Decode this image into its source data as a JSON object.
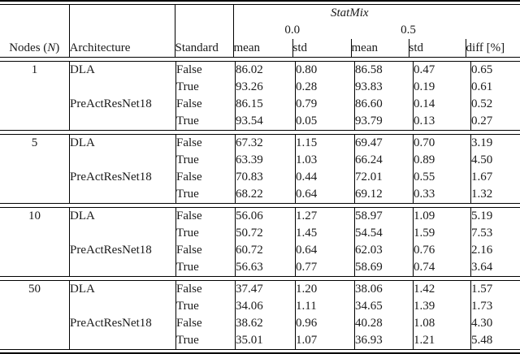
{
  "table": {
    "header": {
      "statmix": "StatMix",
      "sub_left": "0.0",
      "sub_right": "0.5",
      "nodes_prefix": "Nodes (",
      "nodes_var": "N",
      "nodes_suffix": ")",
      "architecture": "Architecture",
      "standard": "Standard",
      "mean": "mean",
      "std": "std",
      "diff": "diff [%]"
    },
    "groups": [
      {
        "nodes": "1",
        "rows": [
          {
            "architecture": "DLA",
            "standard": "False",
            "mean_00": "86.02",
            "std_00": "0.80",
            "mean_05": "86.58",
            "std_05": "0.47",
            "diff": "0.65"
          },
          {
            "architecture": "",
            "standard": "True",
            "mean_00": "93.26",
            "std_00": "0.28",
            "mean_05": "93.83",
            "std_05": "0.19",
            "diff": "0.61"
          },
          {
            "architecture": "PreActResNet18",
            "standard": "False",
            "mean_00": "86.15",
            "std_00": "0.79",
            "mean_05": "86.60",
            "std_05": "0.14",
            "diff": "0.52"
          },
          {
            "architecture": "",
            "standard": "True",
            "mean_00": "93.54",
            "std_00": "0.05",
            "mean_05": "93.79",
            "std_05": "0.13",
            "diff": "0.27"
          }
        ]
      },
      {
        "nodes": "5",
        "rows": [
          {
            "architecture": "DLA",
            "standard": "False",
            "mean_00": "67.32",
            "std_00": "1.15",
            "mean_05": "69.47",
            "std_05": "0.70",
            "diff": "3.19"
          },
          {
            "architecture": "",
            "standard": "True",
            "mean_00": "63.39",
            "std_00": "1.03",
            "mean_05": "66.24",
            "std_05": "0.89",
            "diff": "4.50"
          },
          {
            "architecture": "PreActResNet18",
            "standard": "False",
            "mean_00": "70.83",
            "std_00": "0.44",
            "mean_05": "72.01",
            "std_05": "0.55",
            "diff": "1.67"
          },
          {
            "architecture": "",
            "standard": "True",
            "mean_00": "68.22",
            "std_00": "0.64",
            "mean_05": "69.12",
            "std_05": "0.33",
            "diff": "1.32"
          }
        ]
      },
      {
        "nodes": "10",
        "rows": [
          {
            "architecture": "DLA",
            "standard": "False",
            "mean_00": "56.06",
            "std_00": "1.27",
            "mean_05": "58.97",
            "std_05": "1.09",
            "diff": "5.19"
          },
          {
            "architecture": "",
            "standard": "True",
            "mean_00": "50.72",
            "std_00": "1.45",
            "mean_05": "54.54",
            "std_05": "1.59",
            "diff": "7.53"
          },
          {
            "architecture": "PreActResNet18",
            "standard": "False",
            "mean_00": "60.72",
            "std_00": "0.64",
            "mean_05": "62.03",
            "std_05": "0.76",
            "diff": "2.16"
          },
          {
            "architecture": "",
            "standard": "True",
            "mean_00": "56.63",
            "std_00": "0.77",
            "mean_05": "58.69",
            "std_05": "0.74",
            "diff": "3.64"
          }
        ]
      },
      {
        "nodes": "50",
        "rows": [
          {
            "architecture": "DLA",
            "standard": "False",
            "mean_00": "37.47",
            "std_00": "1.20",
            "mean_05": "38.06",
            "std_05": "1.42",
            "diff": "1.57"
          },
          {
            "architecture": "",
            "standard": "True",
            "mean_00": "34.06",
            "std_00": "1.11",
            "mean_05": "34.65",
            "std_05": "1.39",
            "diff": "1.73"
          },
          {
            "architecture": "PreActResNet18",
            "standard": "False",
            "mean_00": "38.62",
            "std_00": "0.96",
            "mean_05": "40.28",
            "std_05": "1.08",
            "diff": "4.30"
          },
          {
            "architecture": "",
            "standard": "True",
            "mean_00": "35.01",
            "std_00": "1.07",
            "mean_05": "36.93",
            "std_05": "1.21",
            "diff": "5.48"
          }
        ]
      }
    ]
  }
}
